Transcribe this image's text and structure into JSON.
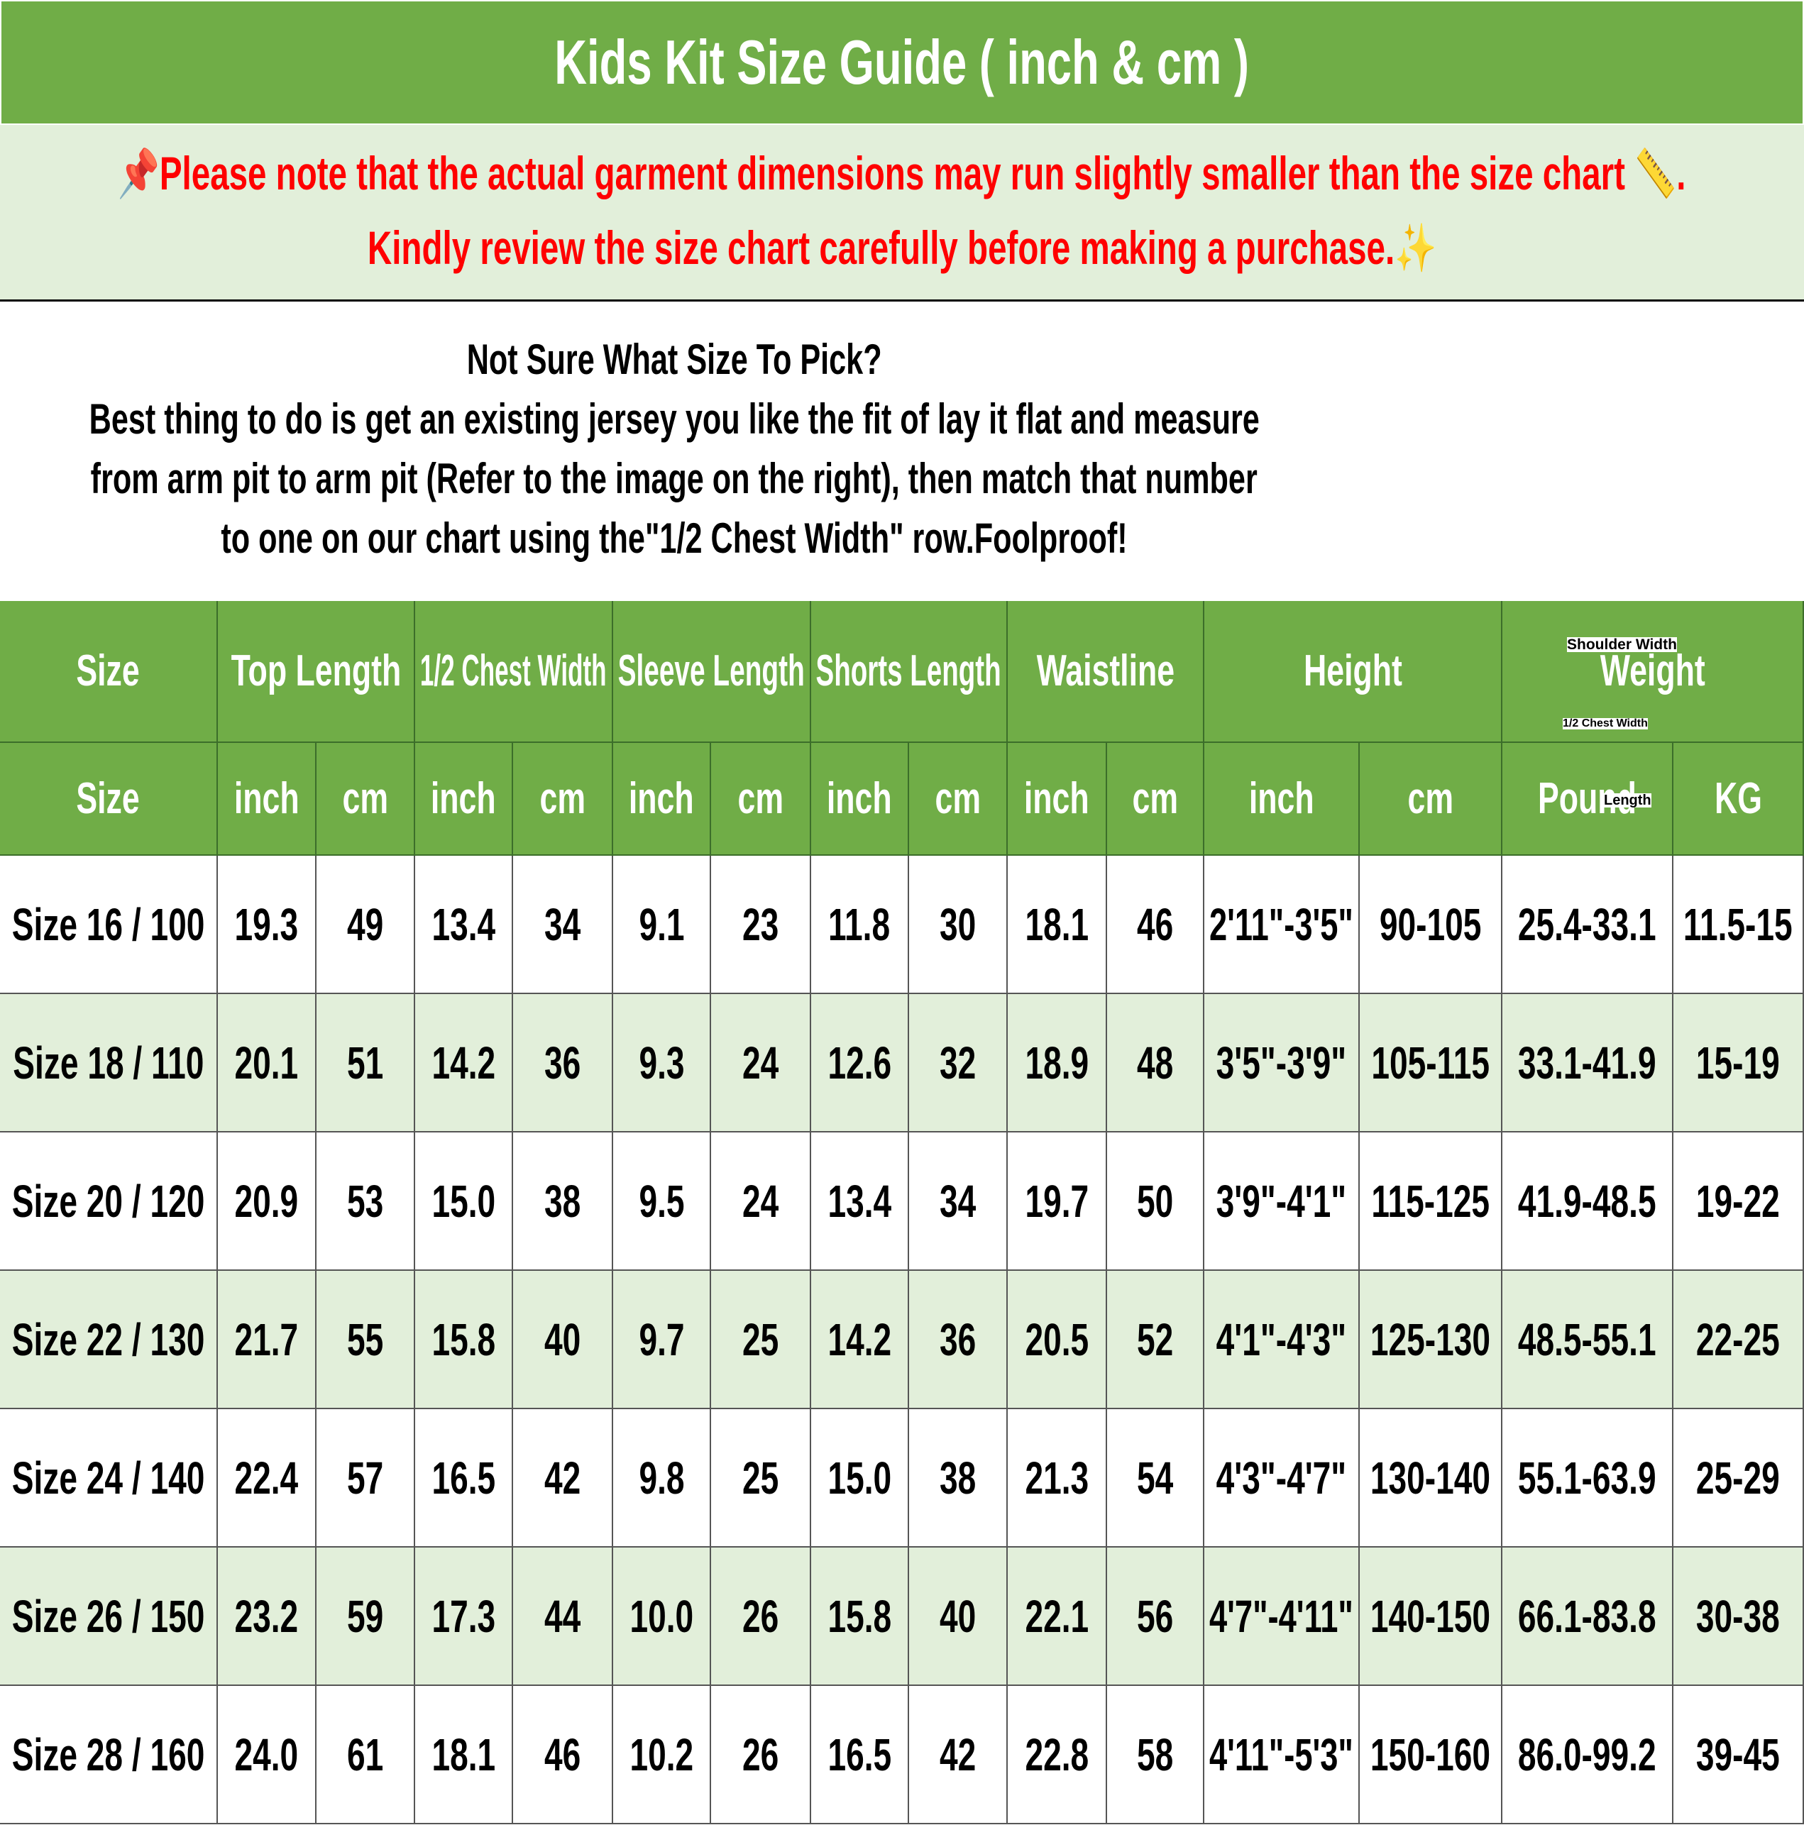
{
  "title": "Kids Kit Size Guide ( inch & cm )",
  "note": {
    "line1": "Please note that the actual garment dimensions may run slightly smaller than the size chart",
    "line1_end": ".",
    "line2": "Kindly review the size chart carefully before making a purchase.",
    "icons": [
      "pushpin-icon",
      "ruler-icon",
      "sparkles-icon"
    ],
    "color": "#ff0000"
  },
  "intro": {
    "heading": "Not Sure What Size To Pick?",
    "l1": "Best thing to do is get an existing jersey you like the fit of lay it flat and measure",
    "l2": "from arm pit to arm pit (Refer to the image on the right), then match that number",
    "l3": "to one on our chart using the\"1/2 Chest Width\" row.Foolproof!"
  },
  "diagram": {
    "shoulder": "Shoulder Width",
    "chest": "1/2 Chest Width",
    "length": "Length"
  },
  "colors": {
    "header": "#70ad47",
    "stripe": "#e2efda"
  },
  "table": {
    "groups": [
      "Size",
      "Top Length",
      "1/2 Chest Width",
      "Sleeve Length",
      "Shorts Length",
      "Waistline",
      "Height",
      "Weight"
    ],
    "units": [
      "Size",
      "inch",
      "cm",
      "inch",
      "cm",
      "inch",
      "cm",
      "inch",
      "cm",
      "inch",
      "cm",
      "inch",
      "cm",
      "Pound",
      "KG"
    ],
    "rows": [
      [
        "Size 16 / 100",
        "19.3",
        "49",
        "13.4",
        "34",
        "9.1",
        "23",
        "11.8",
        "30",
        "18.1",
        "46",
        "2'11\"-3'5\"",
        "90-105",
        "25.4-33.1",
        "11.5-15"
      ],
      [
        "Size 18 / 110",
        "20.1",
        "51",
        "14.2",
        "36",
        "9.3",
        "24",
        "12.6",
        "32",
        "18.9",
        "48",
        "3'5\"-3'9\"",
        "105-115",
        "33.1-41.9",
        "15-19"
      ],
      [
        "Size 20 / 120",
        "20.9",
        "53",
        "15.0",
        "38",
        "9.5",
        "24",
        "13.4",
        "34",
        "19.7",
        "50",
        "3'9\"-4'1\"",
        "115-125",
        "41.9-48.5",
        "19-22"
      ],
      [
        "Size 22 / 130",
        "21.7",
        "55",
        "15.8",
        "40",
        "9.7",
        "25",
        "14.2",
        "36",
        "20.5",
        "52",
        "4'1\"-4'3\"",
        "125-130",
        "48.5-55.1",
        "22-25"
      ],
      [
        "Size 24 / 140",
        "22.4",
        "57",
        "16.5",
        "42",
        "9.8",
        "25",
        "15.0",
        "38",
        "21.3",
        "54",
        "4'3\"-4'7\"",
        "130-140",
        "55.1-63.9",
        "25-29"
      ],
      [
        "Size 26 / 150",
        "23.2",
        "59",
        "17.3",
        "44",
        "10.0",
        "26",
        "15.8",
        "40",
        "22.1",
        "56",
        "4'7\"-4'11\"",
        "140-150",
        "66.1-83.8",
        "30-38"
      ],
      [
        "Size 28 / 160",
        "24.0",
        "61",
        "18.1",
        "46",
        "10.2",
        "26",
        "16.5",
        "42",
        "22.8",
        "58",
        "4'11\"-5'3\"",
        "150-160",
        "86.0-99.2",
        "39-45"
      ]
    ]
  }
}
